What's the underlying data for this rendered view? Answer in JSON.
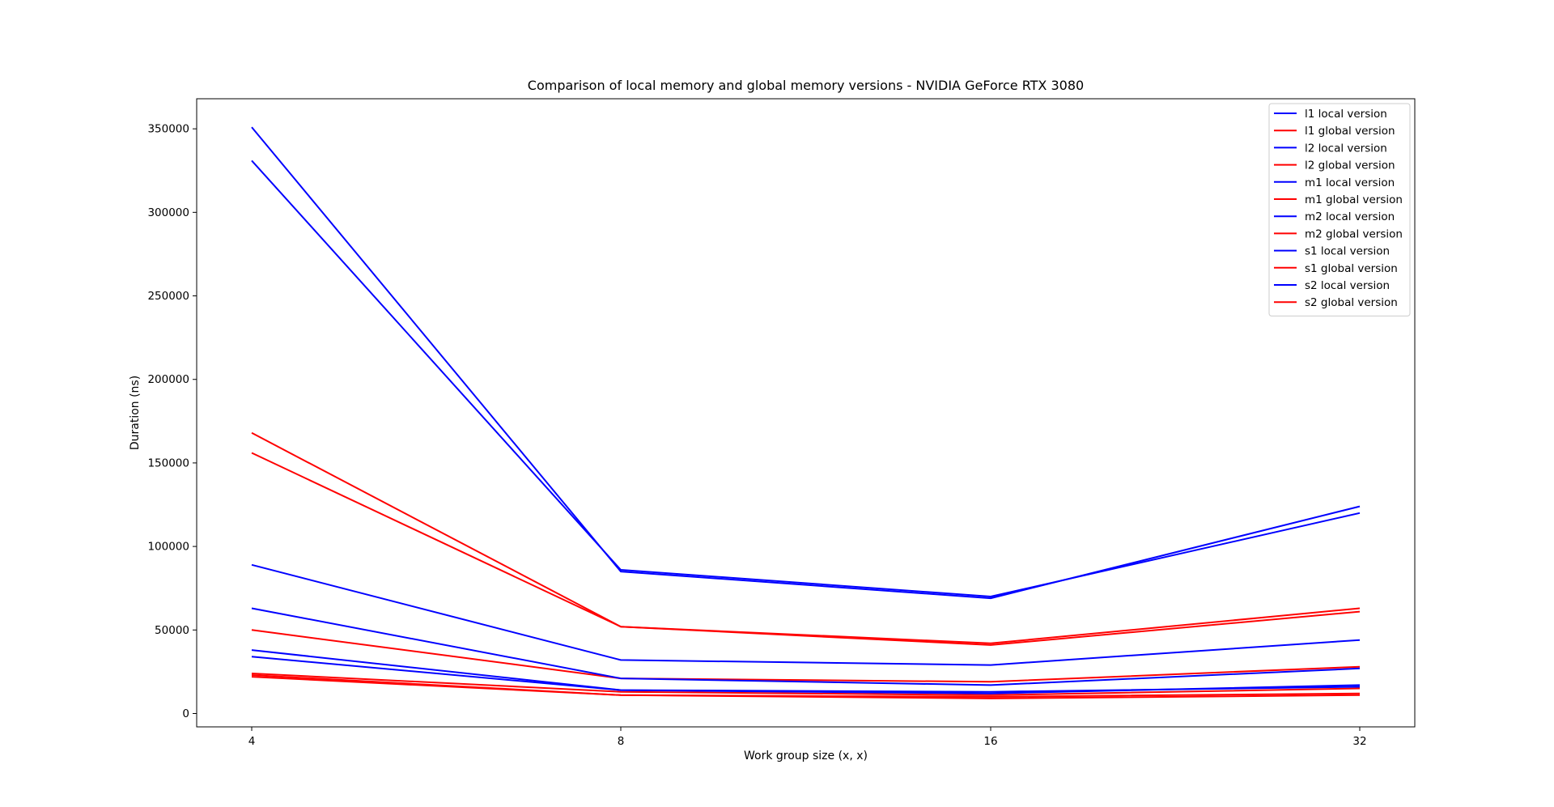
{
  "chart_data": {
    "type": "line",
    "title": "Comparison of local memory and global memory versions - NVIDIA GeForce RTX 3080",
    "xlabel": "Work group size (x, x)",
    "ylabel": "Duration (ns)",
    "categories": [
      "4",
      "8",
      "16",
      "32"
    ],
    "yticks": [
      "0",
      "50000",
      "100000",
      "150000",
      "200000",
      "250000",
      "300000",
      "350000"
    ],
    "ylim": [
      -8000,
      368000
    ],
    "grid": false,
    "legend_position": "top-right",
    "colors": {
      "local": "#0000ff",
      "global": "#ff0000"
    },
    "series": [
      {
        "name": "l1 local version",
        "color": "#0000ff",
        "values": [
          351000,
          85000,
          69000,
          124000
        ]
      },
      {
        "name": "l1 global version",
        "color": "#ff0000",
        "values": [
          168000,
          52000,
          42000,
          63000
        ]
      },
      {
        "name": "l2 local version",
        "color": "#0000ff",
        "values": [
          331000,
          86000,
          70000,
          120000
        ]
      },
      {
        "name": "l2 global version",
        "color": "#ff0000",
        "values": [
          156000,
          52000,
          41000,
          61000
        ]
      },
      {
        "name": "m1 local version",
        "color": "#0000ff",
        "values": [
          89000,
          32000,
          29000,
          44000
        ]
      },
      {
        "name": "m1 global version",
        "color": "#ff0000",
        "values": [
          50000,
          21000,
          19000,
          28000
        ]
      },
      {
        "name": "m2 local version",
        "color": "#0000ff",
        "values": [
          63000,
          21000,
          17000,
          27000
        ]
      },
      {
        "name": "m2 global version",
        "color": "#ff0000",
        "values": [
          24000,
          13000,
          11000,
          15000
        ]
      },
      {
        "name": "s1 local version",
        "color": "#0000ff",
        "values": [
          38000,
          14000,
          12000,
          17000
        ]
      },
      {
        "name": "s1 global version",
        "color": "#ff0000",
        "values": [
          22000,
          11000,
          9000,
          11000
        ]
      },
      {
        "name": "s2 local version",
        "color": "#0000ff",
        "values": [
          34000,
          14000,
          13000,
          16000
        ]
      },
      {
        "name": "s2 global version",
        "color": "#ff0000",
        "values": [
          23000,
          11000,
          10000,
          12000
        ]
      }
    ]
  }
}
